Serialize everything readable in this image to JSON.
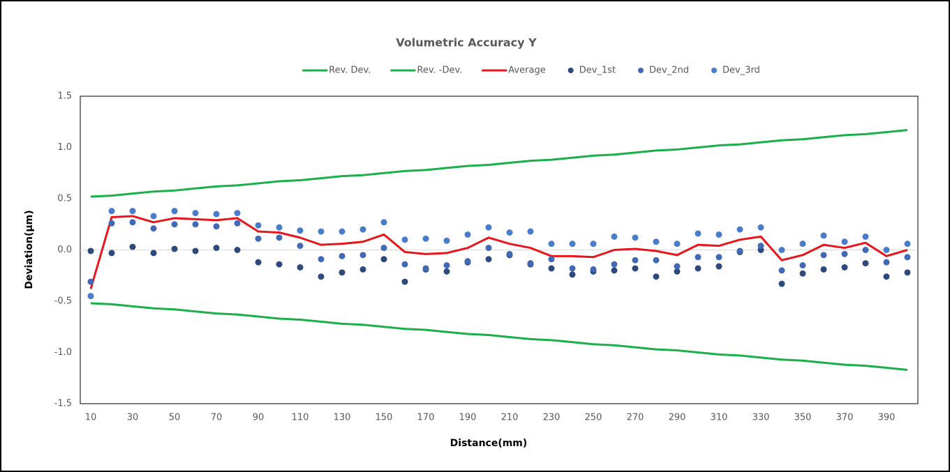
{
  "chart_data": {
    "type": "line",
    "title": "Volumetric Accuracy Y",
    "x_label": "Distance(mm)",
    "y_label": "Deviation(µm)",
    "categories": [
      10,
      null,
      30,
      null,
      50,
      null,
      70,
      null,
      90,
      null,
      110,
      null,
      130,
      null,
      150,
      null,
      170,
      null,
      190,
      null,
      210,
      null,
      230,
      null,
      250,
      null,
      270,
      null,
      290,
      null,
      310,
      null,
      330,
      null,
      350,
      null,
      370,
      null,
      390,
      null
    ],
    "ylim": [
      -1.5,
      1.5
    ],
    "yticks": [
      {
        "value": -1.5,
        "label": "-1.5"
      },
      {
        "value": -1,
        "label": "-1.0"
      },
      {
        "value": -0.5,
        "label": "-0.5"
      },
      {
        "value": 0,
        "label": "0.0"
      },
      {
        "value": 0.5,
        "label": "0.5"
      },
      {
        "value": 1,
        "label": "1.0"
      },
      {
        "value": 1.5,
        "label": "1.5"
      }
    ],
    "grid": false,
    "legend": "top",
    "series": [
      {
        "name": "Rev. Dev.",
        "type": "line",
        "color": "#1aaf48",
        "values": [
          0.52,
          0.53,
          0.55,
          0.57,
          0.58,
          0.6,
          0.62,
          0.63,
          0.65,
          0.67,
          0.68,
          0.7,
          0.72,
          0.73,
          0.75,
          0.77,
          0.78,
          0.8,
          0.82,
          0.83,
          0.85,
          0.87,
          0.88,
          0.9,
          0.92,
          0.93,
          0.95,
          0.97,
          0.98,
          1.0,
          1.02,
          1.03,
          1.05,
          1.07,
          1.08,
          1.1,
          1.12,
          1.13,
          1.15,
          1.17
        ]
      },
      {
        "name": "Rev. -Dev.",
        "type": "line",
        "color": "#1aaf48",
        "values": [
          -0.52,
          -0.53,
          -0.55,
          -0.57,
          -0.58,
          -0.6,
          -0.62,
          -0.63,
          -0.65,
          -0.67,
          -0.68,
          -0.7,
          -0.72,
          -0.73,
          -0.75,
          -0.77,
          -0.78,
          -0.8,
          -0.82,
          -0.83,
          -0.85,
          -0.87,
          -0.88,
          -0.9,
          -0.92,
          -0.93,
          -0.95,
          -0.97,
          -0.98,
          -1.0,
          -1.02,
          -1.03,
          -1.05,
          -1.07,
          -1.08,
          -1.1,
          -1.12,
          -1.13,
          -1.15,
          -1.17
        ]
      },
      {
        "name": "Average",
        "type": "line",
        "color": "#e8151b",
        "values": [
          -0.38,
          0.32,
          0.33,
          0.27,
          0.31,
          0.3,
          0.29,
          0.31,
          0.18,
          0.17,
          0.12,
          0.05,
          0.06,
          0.08,
          0.15,
          -0.02,
          -0.04,
          -0.03,
          0.02,
          0.12,
          0.06,
          0.02,
          -0.06,
          -0.06,
          -0.07,
          0.0,
          0.01,
          -0.01,
          -0.05,
          0.05,
          0.04,
          0.1,
          0.13,
          -0.1,
          -0.05,
          0.05,
          0.02,
          0.07,
          -0.06,
          0.0
        ]
      },
      {
        "name": "Dev_1st",
        "type": "scatter",
        "color": "#2e4a7d",
        "values": [
          -0.01,
          -0.03,
          0.03,
          -0.03,
          0.01,
          -0.01,
          0.02,
          0.0,
          -0.12,
          -0.14,
          -0.17,
          -0.26,
          -0.22,
          -0.19,
          -0.09,
          -0.31,
          -0.19,
          -0.21,
          -0.12,
          -0.09,
          -0.05,
          -0.14,
          -0.18,
          -0.24,
          -0.21,
          -0.2,
          -0.18,
          -0.26,
          -0.21,
          -0.18,
          -0.16,
          -0.02,
          0.0,
          -0.33,
          -0.23,
          -0.19,
          -0.17,
          -0.13,
          -0.26,
          -0.22
        ]
      },
      {
        "name": "Dev_2nd",
        "type": "scatter",
        "color": "#4169b4",
        "values": [
          -0.31,
          0.26,
          0.27,
          0.21,
          0.25,
          0.25,
          0.23,
          0.26,
          0.11,
          0.12,
          0.04,
          -0.09,
          -0.06,
          -0.05,
          0.02,
          -0.14,
          -0.18,
          -0.15,
          -0.11,
          0.02,
          -0.04,
          -0.13,
          -0.09,
          -0.18,
          -0.19,
          -0.14,
          -0.1,
          -0.1,
          -0.16,
          -0.07,
          -0.07,
          -0.01,
          0.04,
          -0.2,
          -0.15,
          -0.05,
          -0.04,
          0.0,
          -0.12,
          -0.07
        ]
      },
      {
        "name": "Dev_3rd",
        "type": "scatter",
        "color": "#4a7ccc",
        "values": [
          -0.45,
          0.38,
          0.38,
          0.33,
          0.38,
          0.36,
          0.35,
          0.36,
          0.24,
          0.22,
          0.19,
          0.18,
          0.18,
          0.2,
          0.27,
          0.1,
          0.11,
          0.09,
          0.15,
          0.22,
          0.17,
          0.18,
          0.06,
          0.06,
          0.06,
          0.13,
          0.12,
          0.08,
          0.06,
          0.16,
          0.15,
          0.2,
          0.22,
          0.0,
          0.06,
          0.14,
          0.08,
          0.13,
          0.0,
          0.06
        ]
      }
    ]
  }
}
